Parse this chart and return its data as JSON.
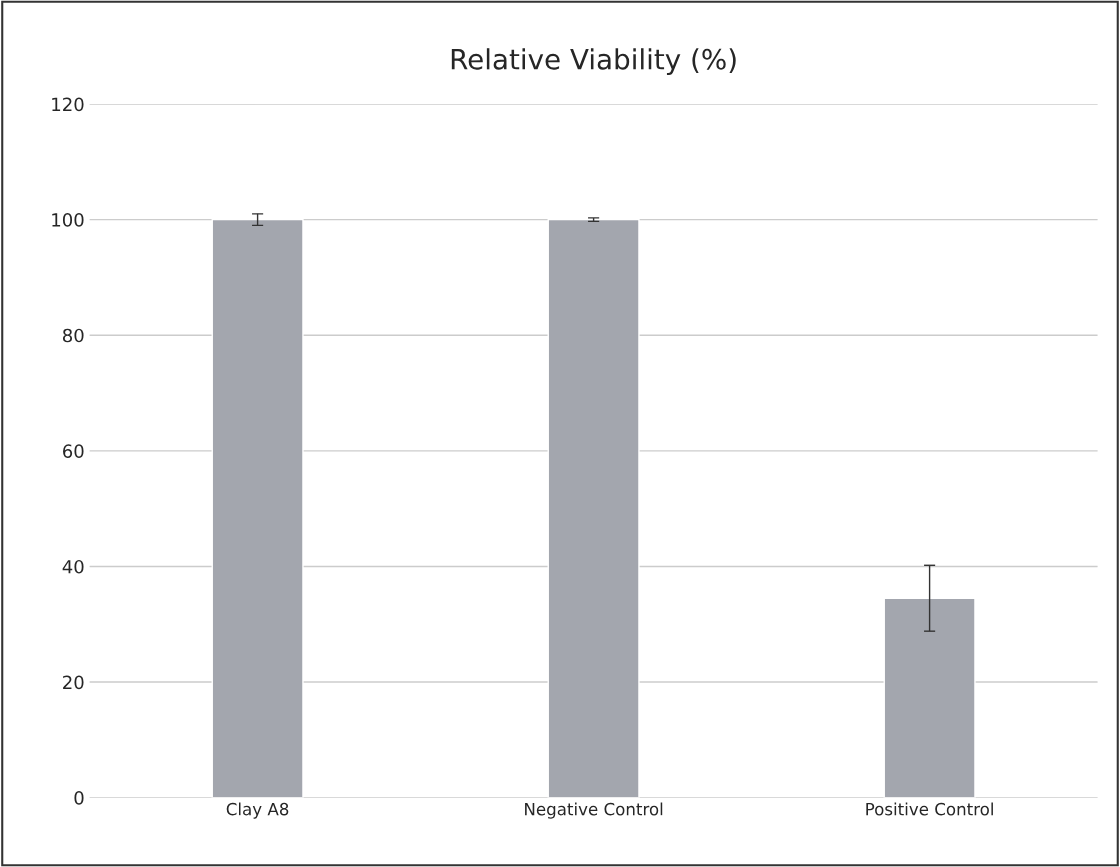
{
  "chart_data": {
    "type": "bar",
    "title": "Relative Viability (%)",
    "categories": [
      "Clay A8",
      "Negative Control",
      "Positive Control"
    ],
    "values": [
      100,
      100,
      34.5
    ],
    "errors": [
      1,
      0.3,
      5.7
    ],
    "color": "#a3a6ae",
    "ylim": [
      0,
      120
    ],
    "yticks": [
      0,
      20,
      40,
      60,
      80,
      100,
      120
    ],
    "grid": "y"
  }
}
